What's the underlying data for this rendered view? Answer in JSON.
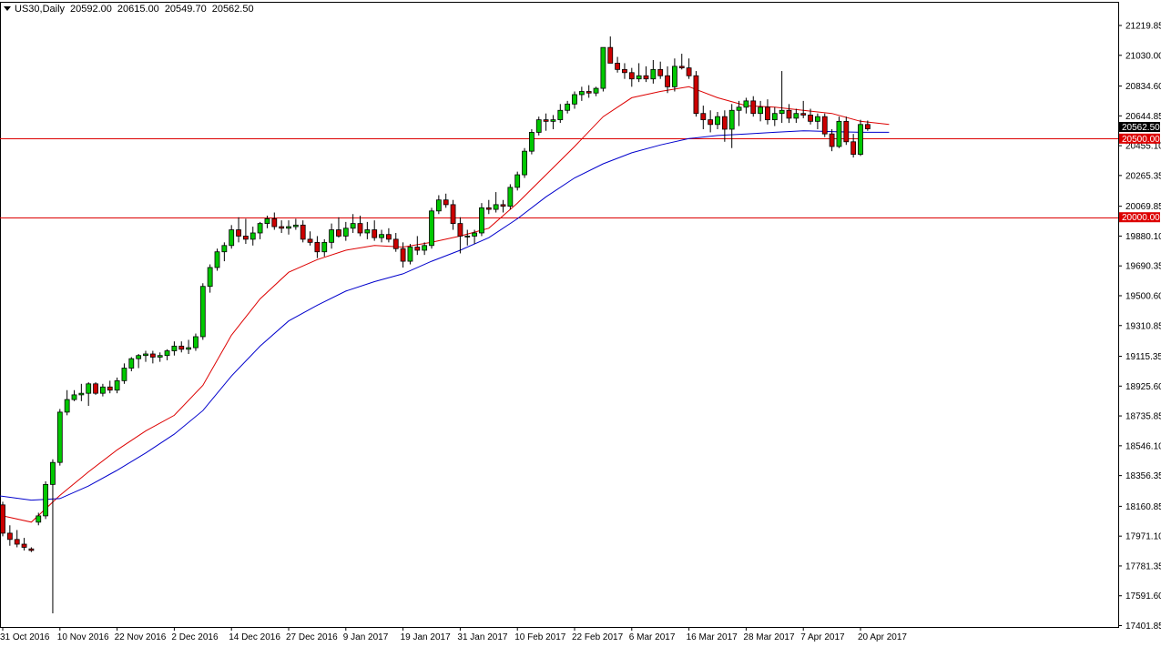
{
  "header": {
    "symbol": "US30,Daily",
    "open": "20592.00",
    "high": "20615.00",
    "low": "20549.70",
    "close": "20562.50"
  },
  "colors": {
    "bull": "#00c800",
    "bear": "#cc0000",
    "ma_fast": "#dd0000",
    "ma_slow": "#0000cc",
    "hline": "#dd0000",
    "grid": "#000000"
  },
  "chart_data": {
    "type": "candlestick",
    "title": "US30,Daily",
    "ylim": [
      17401.85,
      21300
    ],
    "y_ticks": [
      "21219.85",
      "21030.00",
      "20834.60",
      "20644.85",
      "20455.10",
      "20265.35",
      "20069.85",
      "19880.10",
      "19690.35",
      "19500.60",
      "19310.85",
      "19115.35",
      "18925.60",
      "18735.85",
      "18546.10",
      "18356.35",
      "18160.85",
      "17971.10",
      "17781.35",
      "17591.60",
      "17401.85"
    ],
    "x_labels": [
      {
        "i": 0,
        "label": "31 Oct 2016"
      },
      {
        "i": 8,
        "label": "10 Nov 2016"
      },
      {
        "i": 16,
        "label": "22 Nov 2016"
      },
      {
        "i": 24,
        "label": "2 Dec 2016"
      },
      {
        "i": 32,
        "label": "14 Dec 2016"
      },
      {
        "i": 40,
        "label": "27 Dec 2016"
      },
      {
        "i": 48,
        "label": "9 Jan 2017"
      },
      {
        "i": 56,
        "label": "19 Jan 2017"
      },
      {
        "i": 64,
        "label": "31 Jan 2017"
      },
      {
        "i": 72,
        "label": "10 Feb 2017"
      },
      {
        "i": 80,
        "label": "22 Feb 2017"
      },
      {
        "i": 88,
        "label": "6 Mar 2017"
      },
      {
        "i": 96,
        "label": "16 Mar 2017"
      },
      {
        "i": 104,
        "label": "28 Mar 2017"
      },
      {
        "i": 112,
        "label": "7 Apr 2017"
      },
      {
        "i": 120,
        "label": "20 Apr 2017"
      }
    ],
    "price_lines": [
      {
        "value": 20500.0,
        "label": "20500.00"
      },
      {
        "value": 20000.0,
        "label": "20000.00"
      }
    ],
    "current_price": {
      "value": 20562.5,
      "label": "20562.50"
    },
    "candles": [
      [
        18170,
        18190,
        17970,
        17990
      ],
      [
        17990,
        18040,
        17910,
        17950
      ],
      [
        17950,
        18010,
        17900,
        17920
      ],
      [
        17920,
        17960,
        17880,
        17900
      ],
      [
        17890,
        17900,
        17870,
        17880
      ],
      [
        18060,
        18120,
        18040,
        18100
      ],
      [
        18100,
        18320,
        18080,
        18300
      ],
      [
        18300,
        18460,
        17480,
        18440
      ],
      [
        18440,
        18780,
        18420,
        18760
      ],
      [
        18760,
        18900,
        18740,
        18840
      ],
      [
        18840,
        18900,
        18830,
        18870
      ],
      [
        18870,
        18940,
        18830,
        18880
      ],
      [
        18880,
        18950,
        18800,
        18940
      ],
      [
        18940,
        18950,
        18870,
        18880
      ],
      [
        18880,
        18940,
        18860,
        18920
      ],
      [
        18920,
        18960,
        18880,
        18900
      ],
      [
        18900,
        18980,
        18880,
        18960
      ],
      [
        18960,
        19070,
        18940,
        19040
      ],
      [
        19040,
        19110,
        19020,
        19100
      ],
      [
        19100,
        19130,
        19040,
        19120
      ],
      [
        19120,
        19150,
        19080,
        19130
      ],
      [
        19130,
        19150,
        19070,
        19110
      ],
      [
        19110,
        19140,
        19080,
        19120
      ],
      [
        19120,
        19160,
        19090,
        19150
      ],
      [
        19150,
        19210,
        19120,
        19180
      ],
      [
        19180,
        19210,
        19140,
        19160
      ],
      [
        19160,
        19220,
        19130,
        19170
      ],
      [
        19170,
        19260,
        19150,
        19240
      ],
      [
        19240,
        19580,
        19220,
        19560
      ],
      [
        19560,
        19700,
        19520,
        19680
      ],
      [
        19680,
        19800,
        19660,
        19780
      ],
      [
        19780,
        19840,
        19720,
        19820
      ],
      [
        19820,
        19950,
        19800,
        19920
      ],
      [
        19920,
        20000,
        19840,
        19880
      ],
      [
        19880,
        19990,
        19830,
        19860
      ],
      [
        19860,
        19940,
        19820,
        19900
      ],
      [
        19900,
        19970,
        19860,
        19960
      ],
      [
        19960,
        20010,
        19930,
        19990
      ],
      [
        19990,
        20030,
        19920,
        19940
      ],
      [
        19940,
        19980,
        19900,
        19930
      ],
      [
        19930,
        19980,
        19890,
        19940
      ],
      [
        19940,
        19990,
        19920,
        19950
      ],
      [
        19950,
        19980,
        19840,
        19860
      ],
      [
        19860,
        19910,
        19820,
        19840
      ],
      [
        19840,
        19880,
        19740,
        19780
      ],
      [
        19780,
        19860,
        19750,
        19840
      ],
      [
        19840,
        19960,
        19800,
        19920
      ],
      [
        19920,
        20000,
        19870,
        19880
      ],
      [
        19880,
        19970,
        19850,
        19930
      ],
      [
        19930,
        20020,
        19900,
        19960
      ],
      [
        19960,
        20010,
        19880,
        19900
      ],
      [
        19900,
        19970,
        19860,
        19920
      ],
      [
        19920,
        19980,
        19850,
        19870
      ],
      [
        19870,
        19920,
        19840,
        19890
      ],
      [
        19890,
        19930,
        19840,
        19860
      ],
      [
        19860,
        19900,
        19780,
        19800
      ],
      [
        19800,
        19840,
        19680,
        19720
      ],
      [
        19720,
        19830,
        19700,
        19810
      ],
      [
        19810,
        19880,
        19760,
        19790
      ],
      [
        19790,
        19840,
        19760,
        19820
      ],
      [
        19820,
        20060,
        19800,
        20040
      ],
      [
        20040,
        20140,
        20020,
        20110
      ],
      [
        20110,
        20150,
        20060,
        20080
      ],
      [
        20080,
        20110,
        19920,
        19960
      ],
      [
        19960,
        20000,
        19770,
        19880
      ],
      [
        19880,
        19920,
        19820,
        19880
      ],
      [
        19880,
        19920,
        19830,
        19900
      ],
      [
        19900,
        20090,
        19880,
        20060
      ],
      [
        20060,
        20110,
        20020,
        20050
      ],
      [
        20050,
        20160,
        20030,
        20080
      ],
      [
        20080,
        20110,
        20030,
        20070
      ],
      [
        20070,
        20210,
        20050,
        20190
      ],
      [
        20190,
        20290,
        20170,
        20270
      ],
      [
        20270,
        20440,
        20250,
        20420
      ],
      [
        20420,
        20560,
        20400,
        20540
      ],
      [
        20540,
        20640,
        20520,
        20620
      ],
      [
        20620,
        20660,
        20550,
        20610
      ],
      [
        20610,
        20650,
        20560,
        20620
      ],
      [
        20620,
        20720,
        20600,
        20680
      ],
      [
        20680,
        20740,
        20660,
        20720
      ],
      [
        20720,
        20800,
        20690,
        20780
      ],
      [
        20780,
        20830,
        20740,
        20800
      ],
      [
        20800,
        20840,
        20760,
        20790
      ],
      [
        20790,
        20830,
        20770,
        20820
      ],
      [
        20820,
        21050,
        20800,
        21080
      ],
      [
        21080,
        21150,
        20980,
        20980
      ],
      [
        20980,
        21020,
        20920,
        20940
      ],
      [
        20940,
        20980,
        20880,
        20920
      ],
      [
        20920,
        20950,
        20830,
        20880
      ],
      [
        20880,
        20980,
        20860,
        20900
      ],
      [
        20900,
        20960,
        20860,
        20880
      ],
      [
        20880,
        21000,
        20850,
        20940
      ],
      [
        20940,
        20990,
        20880,
        20900
      ],
      [
        20900,
        20960,
        20790,
        20830
      ],
      [
        20830,
        21010,
        20800,
        20960
      ],
      [
        20960,
        21040,
        20940,
        20950
      ],
      [
        20950,
        21010,
        20880,
        20900
      ],
      [
        20900,
        20930,
        20640,
        20660
      ],
      [
        20660,
        20710,
        20560,
        20620
      ],
      [
        20620,
        20680,
        20540,
        20590
      ],
      [
        20590,
        20670,
        20560,
        20640
      ],
      [
        20640,
        20680,
        20480,
        20560
      ],
      [
        20560,
        20720,
        20440,
        20680
      ],
      [
        20680,
        20740,
        20580,
        20700
      ],
      [
        20700,
        20760,
        20660,
        20740
      ],
      [
        20740,
        20770,
        20640,
        20660
      ],
      [
        20660,
        20740,
        20610,
        20700
      ],
      [
        20700,
        20750,
        20590,
        20620
      ],
      [
        20620,
        20700,
        20580,
        20660
      ],
      [
        20660,
        20930,
        20600,
        20680
      ],
      [
        20680,
        20720,
        20600,
        20630
      ],
      [
        20630,
        20690,
        20600,
        20660
      ],
      [
        20660,
        20740,
        20630,
        20650
      ],
      [
        20650,
        20690,
        20590,
        20610
      ],
      [
        20610,
        20660,
        20560,
        20640
      ],
      [
        20640,
        20660,
        20510,
        20530
      ],
      [
        20530,
        20560,
        20420,
        20450
      ],
      [
        20450,
        20640,
        20440,
        20610
      ],
      [
        20610,
        20640,
        20460,
        20480
      ],
      [
        20480,
        20530,
        20380,
        20400
      ],
      [
        20400,
        20620,
        20390,
        20590
      ],
      [
        20590,
        20615,
        20549.7,
        20562.5
      ]
    ],
    "series": [
      {
        "type": "line",
        "color": "#dd0000",
        "points": [
          [
            0,
            18100
          ],
          [
            4,
            18060
          ],
          [
            8,
            18230
          ],
          [
            12,
            18380
          ],
          [
            16,
            18520
          ],
          [
            20,
            18640
          ],
          [
            24,
            18740
          ],
          [
            28,
            18930
          ],
          [
            32,
            19250
          ],
          [
            36,
            19480
          ],
          [
            40,
            19650
          ],
          [
            44,
            19730
          ],
          [
            48,
            19790
          ],
          [
            52,
            19820
          ],
          [
            56,
            19810
          ],
          [
            60,
            19840
          ],
          [
            64,
            19880
          ],
          [
            68,
            19930
          ],
          [
            72,
            20090
          ],
          [
            76,
            20270
          ],
          [
            80,
            20450
          ],
          [
            84,
            20640
          ],
          [
            88,
            20760
          ],
          [
            92,
            20800
          ],
          [
            96,
            20830
          ],
          [
            100,
            20760
          ],
          [
            104,
            20710
          ],
          [
            108,
            20700
          ],
          [
            112,
            20680
          ],
          [
            116,
            20660
          ],
          [
            120,
            20610
          ],
          [
            124,
            20590
          ]
        ]
      },
      {
        "type": "line",
        "color": "#0000cc",
        "points": [
          [
            -1,
            18230
          ],
          [
            4,
            18200
          ],
          [
            8,
            18210
          ],
          [
            12,
            18290
          ],
          [
            16,
            18390
          ],
          [
            20,
            18500
          ],
          [
            24,
            18620
          ],
          [
            28,
            18770
          ],
          [
            32,
            18990
          ],
          [
            36,
            19180
          ],
          [
            40,
            19340
          ],
          [
            44,
            19440
          ],
          [
            48,
            19530
          ],
          [
            52,
            19590
          ],
          [
            56,
            19640
          ],
          [
            60,
            19720
          ],
          [
            64,
            19790
          ],
          [
            68,
            19870
          ],
          [
            72,
            19990
          ],
          [
            76,
            20130
          ],
          [
            80,
            20250
          ],
          [
            84,
            20340
          ],
          [
            88,
            20410
          ],
          [
            92,
            20460
          ],
          [
            96,
            20500
          ],
          [
            100,
            20520
          ],
          [
            104,
            20530
          ],
          [
            108,
            20540
          ],
          [
            112,
            20550
          ],
          [
            116,
            20545
          ],
          [
            120,
            20540
          ],
          [
            124,
            20540
          ]
        ]
      }
    ]
  }
}
